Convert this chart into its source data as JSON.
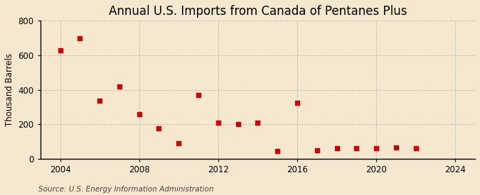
{
  "title": "Annual U.S. Imports from Canada of Pentanes Plus",
  "ylabel": "Thousand Barrels",
  "source": "Source: U.S. Energy Information Administration",
  "years": [
    2004,
    2005,
    2006,
    2007,
    2008,
    2009,
    2010,
    2011,
    2012,
    2013,
    2014,
    2015,
    2016,
    2017,
    2018,
    2019,
    2020,
    2021,
    2022
  ],
  "values": [
    630,
    700,
    335,
    420,
    260,
    175,
    90,
    370,
    210,
    200,
    210,
    45,
    325,
    50,
    60,
    60,
    60,
    65,
    60
  ],
  "marker_color": "#cc0000",
  "marker": "s",
  "marker_size": 4,
  "background_color": "#f5e8ce",
  "grid_color": "#bbbbbb",
  "xlim": [
    2003,
    2025
  ],
  "ylim": [
    0,
    800
  ],
  "yticks": [
    0,
    200,
    400,
    600,
    800
  ],
  "xticks": [
    2004,
    2008,
    2012,
    2016,
    2020,
    2024
  ],
  "title_fontsize": 12,
  "ylabel_fontsize": 8.5,
  "tick_fontsize": 8.5,
  "source_fontsize": 7.5
}
